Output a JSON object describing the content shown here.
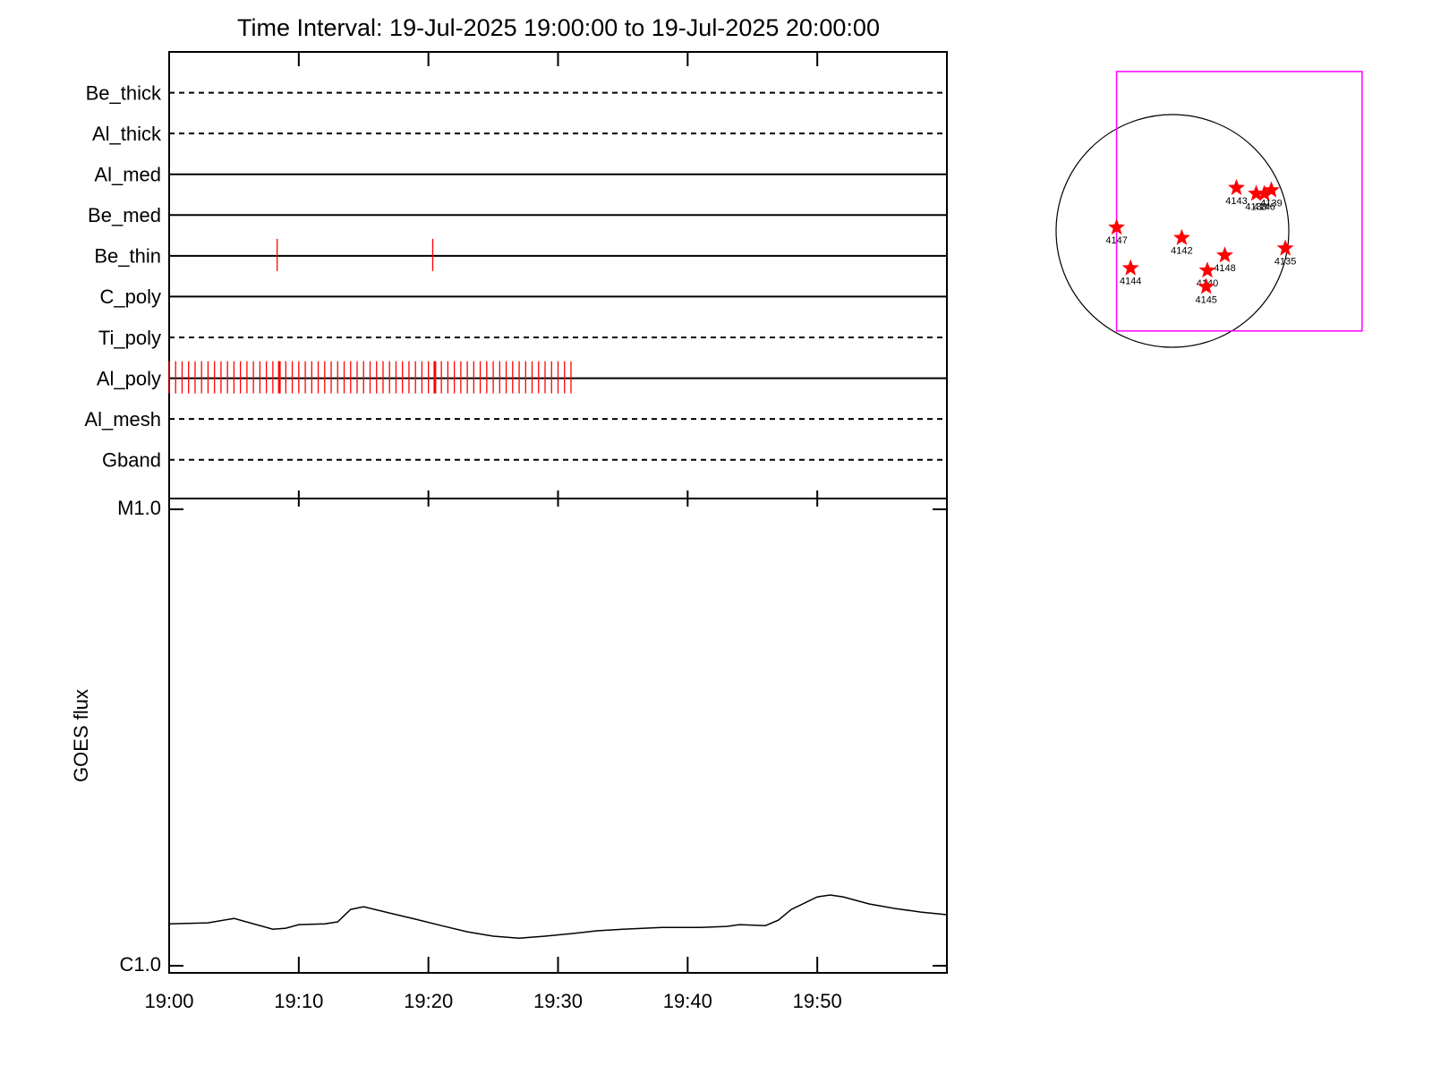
{
  "chart_data": [
    {
      "type": "timeline",
      "title": "Time Interval: 19-Jul-2025 19:00:00 to 19-Jul-2025 20:00:00",
      "xlim": [
        "19:00:00",
        "20:00:00"
      ],
      "event_color": "#ff0000",
      "rows": [
        {
          "name": "Be_thick",
          "style": "dashed",
          "events": []
        },
        {
          "name": "Al_thick",
          "style": "dashed",
          "events": []
        },
        {
          "name": "Al_med",
          "style": "solid",
          "events": []
        },
        {
          "name": "Be_med",
          "style": "solid",
          "events": []
        },
        {
          "name": "Be_thin",
          "style": "solid",
          "events": [
            "19:08:20",
            "19:20:20"
          ]
        },
        {
          "name": "C_poly",
          "style": "solid",
          "events": []
        },
        {
          "name": "Ti_poly",
          "style": "dashed",
          "events": []
        },
        {
          "name": "Al_poly",
          "style": "solid",
          "strong_events": [
            "19:08:30",
            "19:20:30"
          ],
          "events": [
            "19:00:00",
            "19:00:30",
            "19:01:00",
            "19:01:30",
            "19:02:00",
            "19:02:30",
            "19:03:00",
            "19:03:30",
            "19:04:00",
            "19:04:30",
            "19:05:00",
            "19:05:30",
            "19:06:00",
            "19:06:30",
            "19:07:00",
            "19:07:30",
            "19:08:00",
            "19:08:30",
            "19:09:00",
            "19:09:30",
            "19:10:00",
            "19:10:30",
            "19:11:00",
            "19:11:30",
            "19:12:00",
            "19:12:30",
            "19:13:00",
            "19:13:30",
            "19:14:00",
            "19:14:30",
            "19:15:00",
            "19:15:30",
            "19:16:00",
            "19:16:30",
            "19:17:00",
            "19:17:30",
            "19:18:00",
            "19:18:30",
            "19:19:00",
            "19:19:30",
            "19:20:00",
            "19:20:30",
            "19:21:00",
            "19:21:30",
            "19:22:00",
            "19:22:30",
            "19:23:00",
            "19:23:30",
            "19:24:00",
            "19:24:30",
            "19:25:00",
            "19:25:30",
            "19:26:00",
            "19:26:30",
            "19:27:00",
            "19:27:30",
            "19:28:00",
            "19:28:30",
            "19:29:00",
            "19:29:30",
            "19:30:00",
            "19:30:30",
            "19:31:00"
          ]
        },
        {
          "name": "Al_mesh",
          "style": "dashed",
          "events": []
        },
        {
          "name": "Gband",
          "style": "dashed",
          "events": []
        }
      ]
    },
    {
      "type": "line",
      "ylabel": "GOES flux",
      "log": true,
      "color": "#000000",
      "xlim": [
        "19:00:00",
        "20:00:00"
      ],
      "xticks": [
        {
          "value": "19:00:00",
          "label": "19:00"
        },
        {
          "value": "19:10:00",
          "label": "19:10"
        },
        {
          "value": "19:20:00",
          "label": "19:20"
        },
        {
          "value": "19:30:00",
          "label": "19:30"
        },
        {
          "value": "19:40:00",
          "label": "19:40"
        },
        {
          "value": "19:50:00",
          "label": "19:50"
        }
      ],
      "ylim": [
        9.65e-07,
        1.056e-05
      ],
      "yticks": [
        {
          "value": 1e-06,
          "label": "C1.0"
        },
        {
          "value": 1e-05,
          "label": "M1.0"
        }
      ],
      "x": [
        "19:00:00",
        "19:03:00",
        "19:05:00",
        "19:08:00",
        "19:09:00",
        "19:10:00",
        "19:12:00",
        "19:13:00",
        "19:14:00",
        "19:15:00",
        "19:17:00",
        "19:19:00",
        "19:21:00",
        "19:23:00",
        "19:25:00",
        "19:27:00",
        "19:29:00",
        "19:31:00",
        "19:33:00",
        "19:35:00",
        "19:38:00",
        "19:41:00",
        "19:43:00",
        "19:44:00",
        "19:46:00",
        "19:47:00",
        "19:48:00",
        "19:50:00",
        "19:51:00",
        "19:52:00",
        "19:54:00",
        "19:56:00",
        "19:58:00",
        "20:00:00"
      ],
      "values": [
        1.236e-06,
        1.242e-06,
        1.27e-06,
        1.203e-06,
        1.209e-06,
        1.231e-06,
        1.236e-06,
        1.248e-06,
        1.329e-06,
        1.347e-06,
        1.305e-06,
        1.265e-06,
        1.225e-06,
        1.187e-06,
        1.161e-06,
        1.15e-06,
        1.161e-06,
        1.176e-06,
        1.193e-06,
        1.203e-06,
        1.214e-06,
        1.214e-06,
        1.22e-06,
        1.231e-06,
        1.225e-06,
        1.259e-06,
        1.329e-06,
        1.416e-06,
        1.429e-06,
        1.416e-06,
        1.366e-06,
        1.335e-06,
        1.311e-06,
        1.294e-06
      ]
    },
    {
      "type": "map",
      "marker_color": "#ff0000",
      "fov_color": "#ff00ff",
      "fov": {
        "xlim": [
          -0.48,
          1.63
        ],
        "ylim": [
          -0.86,
          1.37
        ]
      },
      "regions": [
        {
          "label": "4143",
          "x": 0.55,
          "y": 0.37
        },
        {
          "label": "4138",
          "x": 0.72,
          "y": 0.32
        },
        {
          "label": "4146",
          "x": 0.79,
          "y": 0.32
        },
        {
          "label": "4139",
          "x": 0.85,
          "y": 0.35
        },
        {
          "label": "4147",
          "x": -0.48,
          "y": 0.03
        },
        {
          "label": "4142",
          "x": 0.08,
          "y": -0.06
        },
        {
          "label": "4148",
          "x": 0.45,
          "y": -0.21
        },
        {
          "label": "4135",
          "x": 0.97,
          "y": -0.15
        },
        {
          "label": "4144",
          "x": -0.36,
          "y": -0.32
        },
        {
          "label": "4140",
          "x": 0.3,
          "y": -0.34
        },
        {
          "label": "4145",
          "x": 0.29,
          "y": -0.48
        }
      ]
    }
  ]
}
